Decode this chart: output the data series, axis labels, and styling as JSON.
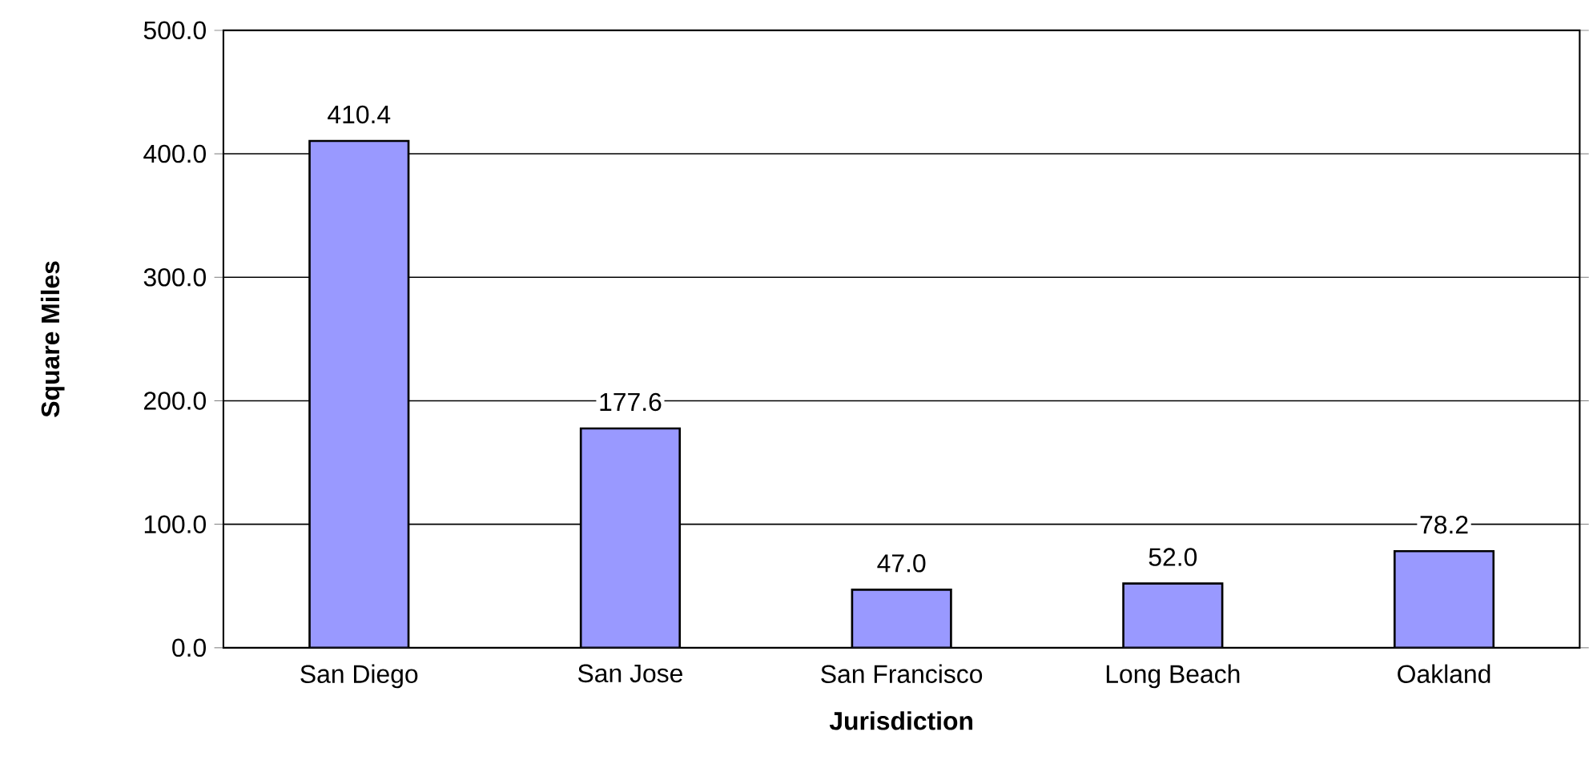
{
  "chart_data": {
    "type": "bar",
    "xlabel": "Jurisdiction",
    "ylabel": "Square Miles",
    "categories": [
      "San Diego",
      "San Jose",
      "San Francisco",
      "Long Beach",
      "Oakland"
    ],
    "values": [
      410.4,
      177.6,
      47.0,
      52.0,
      78.2
    ],
    "value_labels": [
      "410.4",
      "177.6",
      "47.0",
      "52.0",
      "78.2"
    ],
    "color": "#9999ff",
    "ylim": [
      0,
      500
    ],
    "yticks": [
      {
        "value": 0,
        "label": "0.0"
      },
      {
        "value": 100,
        "label": "100.0"
      },
      {
        "value": 200,
        "label": "200.0"
      },
      {
        "value": 300,
        "label": "300.0"
      },
      {
        "value": 400,
        "label": "400.0"
      },
      {
        "value": 500,
        "label": "500.0"
      }
    ],
    "grid": "y"
  }
}
